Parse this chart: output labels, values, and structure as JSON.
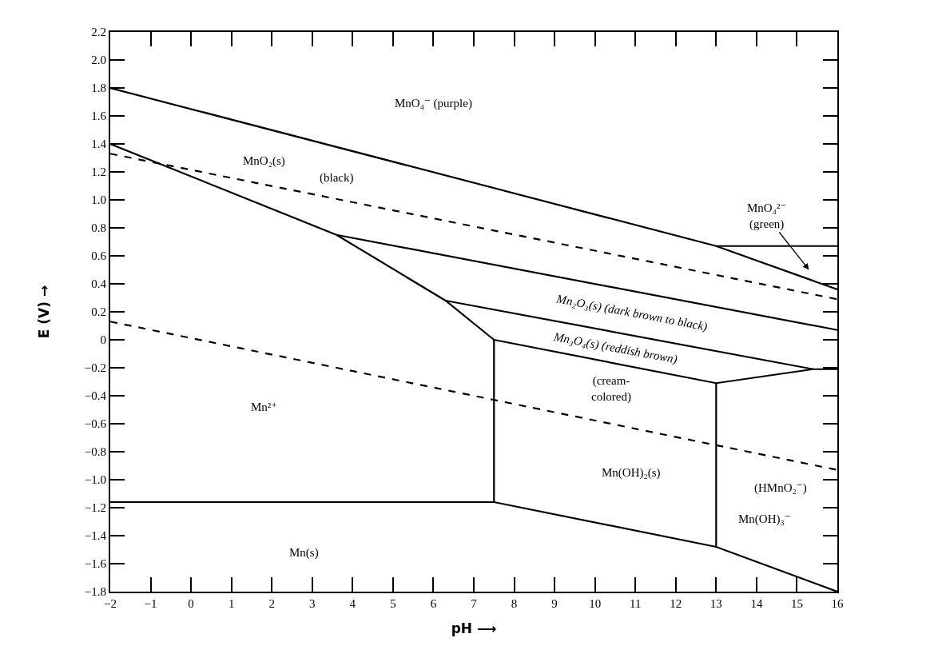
{
  "chart_data": {
    "type": "line",
    "xlabel": "pH ⟶",
    "ylabel": "E (V) →",
    "xlim": [
      -2,
      16
    ],
    "xticks": [
      {
        "value": -2,
        "label": "−2"
      },
      {
        "value": -1,
        "label": "−1"
      },
      0,
      1,
      2,
      3,
      4,
      5,
      6,
      7,
      8,
      9,
      10,
      11,
      12,
      13,
      14,
      15,
      16
    ],
    "ylim": [
      -1.8,
      2.2
    ],
    "yticks": [
      {
        "value": -1.8,
        "label": "−1.8"
      },
      {
        "value": -1.6,
        "label": "−1.6"
      },
      {
        "value": -1.4,
        "label": "−1.4"
      },
      {
        "value": -1.2,
        "label": "−1.2"
      },
      {
        "value": -1,
        "label": "−1.0"
      },
      {
        "value": -0.8,
        "label": "−0.8"
      },
      {
        "value": -0.6,
        "label": "−0.6"
      },
      {
        "value": -0.4,
        "label": "−0.4"
      },
      {
        "value": -0.2,
        "label": "−0.2"
      },
      0,
      0.2,
      0.4,
      0.6,
      0.8,
      {
        "value": 1,
        "label": "1.0"
      },
      1.2,
      1.4,
      1.6,
      1.8,
      {
        "value": 2,
        "label": "2.0"
      },
      2.2
    ],
    "grid": false,
    "marker": "none",
    "line_style": "solid",
    "series": [
      {
        "color": "#000000",
        "x": [
          -2,
          13,
          16
        ],
        "values": [
          1.8,
          0.67,
          0.36
        ]
      },
      {
        "color": "#000000",
        "x": [
          13,
          16
        ],
        "values": [
          0.67,
          0.67
        ]
      },
      {
        "color": "#000000",
        "x": [
          -2,
          3.6,
          6.3,
          7.5
        ],
        "values": [
          1.4,
          0.75,
          0.28,
          0
        ]
      },
      {
        "color": "#000000",
        "x": [
          3.6,
          16
        ],
        "values": [
          0.75,
          0.07
        ]
      },
      {
        "color": "#000000",
        "x": [
          6.3,
          15.4,
          16
        ],
        "values": [
          0.28,
          -0.21,
          -0.21
        ]
      },
      {
        "color": "#000000",
        "x": [
          7.5,
          13,
          15.4
        ],
        "values": [
          0,
          -0.31,
          -0.21
        ]
      },
      {
        "color": "#000000",
        "x": [
          7.5,
          7.5
        ],
        "values": [
          0,
          -1.16
        ]
      },
      {
        "color": "#000000",
        "x": [
          13,
          13
        ],
        "values": [
          -0.31,
          -1.48
        ]
      },
      {
        "color": "#000000",
        "x": [
          -2,
          7.5,
          13,
          16
        ],
        "values": [
          -1.16,
          -1.16,
          -1.48,
          -1.8
        ]
      },
      {
        "color": "#000000",
        "x": [
          -2,
          16
        ],
        "values": [
          1.33,
          0.29
        ],
        "line_style": "dashed"
      },
      {
        "color": "#000000",
        "x": [
          -2,
          16
        ],
        "values": [
          0.13,
          -0.93
        ],
        "line_style": "dashed"
      }
    ],
    "annotations": [
      "MnO₄⁻ (purple)",
      "MnO₂(s)",
      "(black)",
      "MnO₄²⁻\n(green)",
      "Mn₂O₃(s) (dark brown to black)",
      "Mn₃O₄(s) (reddish brown)",
      "(cream-\ncolored)",
      "Mn²⁺",
      "Mn(OH)₂(s)",
      "(HMnO₂⁻)",
      "Mn(OH)₃⁻",
      "Mn(s)"
    ]
  }
}
